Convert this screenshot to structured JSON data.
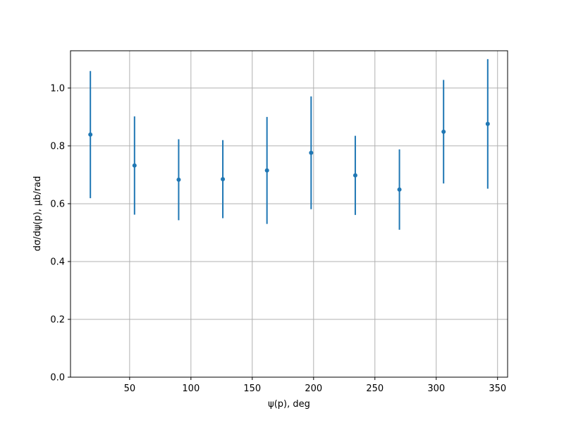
{
  "chart_data": {
    "type": "errorbar",
    "xlabel": "ψ(p), deg",
    "ylabel": "dσ/dψ(p), μb/rad",
    "x": [
      18,
      54,
      90,
      126,
      162,
      198,
      234,
      270,
      306,
      342
    ],
    "series": [
      {
        "color": "#1f77b4",
        "values": [
          0.839,
          0.732,
          0.683,
          0.685,
          0.715,
          0.776,
          0.698,
          0.649,
          0.849,
          0.876
        ],
        "errors": [
          0.22,
          0.17,
          0.14,
          0.135,
          0.185,
          0.195,
          0.137,
          0.139,
          0.179,
          0.224
        ]
      }
    ],
    "xlim": [
      1.8,
      358.2
    ],
    "xticks": [
      50,
      100,
      150,
      200,
      250,
      300,
      350
    ],
    "ylim": [
      0,
      1.129
    ],
    "yticks": [
      {
        "value": 0,
        "label": "0.0"
      },
      {
        "value": 0.2,
        "label": "0.2"
      },
      {
        "value": 0.4,
        "label": "0.4"
      },
      {
        "value": 0.6,
        "label": "0.6"
      },
      {
        "value": 0.8,
        "label": "0.8"
      },
      {
        "value": 1.0,
        "label": "1.0"
      }
    ],
    "grid": true
  }
}
